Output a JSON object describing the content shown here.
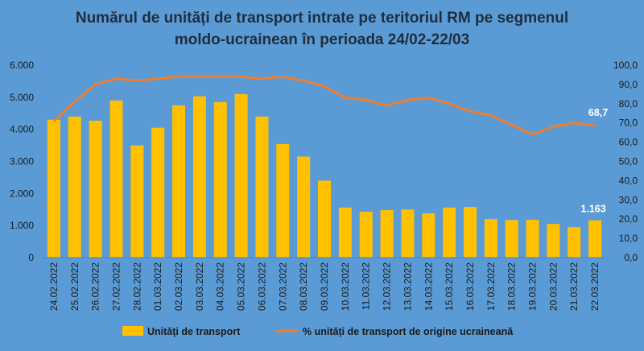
{
  "chart_data": {
    "type": "bar+line",
    "title_line1": "Numărul de unități de transport intrate pe teritoriul RM pe segmenul",
    "title_line2": "moldo-ucrainean în perioada 24/02-22/03",
    "categories": [
      "24.02.2022",
      "25.02.2022",
      "26.02.2022",
      "27.02.2022",
      "28.02.2022",
      "01.03.2022",
      "02.03.2022",
      "03.03.2022",
      "04.03.2022",
      "05.03.2022",
      "06.03.2022",
      "07.03.2022",
      "08.03.2022",
      "09.03.2022",
      "10.03.2022",
      "11.03.2022",
      "12.03.2022",
      "13.03.2022",
      "14.03.2022",
      "15.03.2022",
      "16.03.2022",
      "17.03.2022",
      "18.03.2022",
      "19.03.2022",
      "20.03.2022",
      "21.03.2022",
      "22.03.2022"
    ],
    "series": [
      {
        "name": "Unități de transport",
        "type": "bar",
        "axis": "left",
        "color": "#ffc000",
        "values": [
          4300,
          4400,
          4270,
          4900,
          3500,
          4050,
          4750,
          5030,
          4850,
          5100,
          4400,
          3540,
          3150,
          2400,
          1560,
          1430,
          1480,
          1500,
          1380,
          1560,
          1580,
          1200,
          1170,
          1180,
          1050,
          950,
          1163
        ]
      },
      {
        "name": "% unități de transport de origine ucraineană",
        "type": "line",
        "axis": "right",
        "color": "#ed7d31",
        "values": [
          71,
          81,
          90,
          93,
          92,
          93,
          94,
          94,
          94,
          94,
          93,
          94,
          92,
          89,
          83,
          82,
          79,
          82,
          83,
          80,
          76,
          74,
          69,
          64,
          68,
          70,
          68.7
        ]
      }
    ],
    "left_axis": {
      "min": 0,
      "max": 6000,
      "ticks": [
        "0",
        "1.000",
        "2.000",
        "3.000",
        "4.000",
        "5.000",
        "6.000"
      ]
    },
    "right_axis": {
      "min": 0,
      "max": 100,
      "ticks": [
        "0,0",
        "10,0",
        "20,0",
        "30,0",
        "40,0",
        "50,0",
        "60,0",
        "70,0",
        "80,0",
        "90,0",
        "100,0"
      ]
    },
    "data_labels": {
      "last_bar": "1.163",
      "last_line": "68,7"
    },
    "legend": [
      "Unități de transport",
      "% unități de transport de origine ucraineană"
    ],
    "legend_position": "bottom",
    "grid": false
  }
}
